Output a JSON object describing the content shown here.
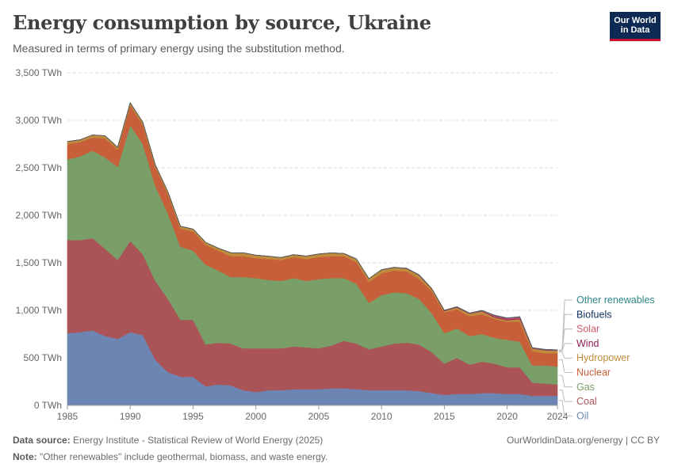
{
  "header": {
    "title": "Energy consumption by source, Ukraine",
    "subtitle": "Measured in terms of primary energy using the substitution method.",
    "logo_line1": "Our World",
    "logo_line2": "in Data"
  },
  "footer": {
    "source_label": "Data source:",
    "source_text": "Energy Institute - Statistical Review of World Energy (2025)",
    "note_label": "Note:",
    "note_text": "\"Other renewables\" include geothermal, biomass, and waste energy.",
    "credit": "OurWorldinData.org/energy | CC BY"
  },
  "colors": {
    "logo_bg": "#0c2a53",
    "logo_accent": "#c8102e"
  },
  "chart_data": {
    "type": "area",
    "stacked": true,
    "title": "Energy consumption by source, Ukraine",
    "xlabel": "",
    "ylabel": "",
    "ylim": [
      0,
      3500
    ],
    "xlim": [
      1985,
      2024
    ],
    "y_ticks": [
      0,
      500,
      1000,
      1500,
      2000,
      2500,
      3000,
      3500
    ],
    "y_tick_labels": [
      "0 TWh",
      "500 TWh",
      "1,000 TWh",
      "1,500 TWh",
      "2,000 TWh",
      "2,500 TWh",
      "3,000 TWh",
      "3,500 TWh"
    ],
    "x_ticks": [
      1985,
      1990,
      1995,
      2000,
      2005,
      2010,
      2015,
      2020,
      2024
    ],
    "x_tick_labels": [
      "1985",
      "1990",
      "1995",
      "2000",
      "2005",
      "2010",
      "2015",
      "2020",
      "2024"
    ],
    "grid": "horizontal-dashed",
    "legend_position": "right",
    "x": [
      1985,
      1986,
      1987,
      1988,
      1989,
      1990,
      1991,
      1992,
      1993,
      1994,
      1995,
      1996,
      1997,
      1998,
      1999,
      2000,
      2001,
      2002,
      2003,
      2004,
      2005,
      2006,
      2007,
      2008,
      2009,
      2010,
      2011,
      2012,
      2013,
      2014,
      2015,
      2016,
      2017,
      2018,
      2019,
      2020,
      2021,
      2022,
      2023,
      2024
    ],
    "series": [
      {
        "name": "Oil",
        "color": "#6d85b3",
        "values": [
          760,
          770,
          790,
          730,
          700,
          770,
          740,
          480,
          350,
          300,
          300,
          200,
          220,
          210,
          160,
          140,
          160,
          160,
          170,
          170,
          170,
          180,
          180,
          170,
          160,
          160,
          160,
          160,
          150,
          130,
          110,
          120,
          120,
          130,
          130,
          120,
          120,
          100,
          100,
          100
        ]
      },
      {
        "name": "Coal",
        "color": "#ab5458",
        "values": [
          980,
          970,
          970,
          920,
          830,
          960,
          850,
          830,
          770,
          600,
          600,
          440,
          440,
          440,
          440,
          460,
          440,
          440,
          450,
          440,
          430,
          450,
          500,
          480,
          430,
          460,
          490,
          500,
          490,
          430,
          330,
          380,
          310,
          330,
          310,
          280,
          280,
          140,
          130,
          120
        ]
      },
      {
        "name": "Gas",
        "color": "#7a9e67",
        "values": [
          850,
          880,
          920,
          960,
          980,
          1220,
          1160,
          1000,
          900,
          770,
          730,
          840,
          760,
          700,
          750,
          740,
          720,
          710,
          720,
          700,
          730,
          710,
          660,
          630,
          490,
          540,
          540,
          520,
          480,
          410,
          320,
          310,
          300,
          290,
          270,
          290,
          270,
          180,
          190,
          190
        ]
      },
      {
        "name": "Nuclear",
        "color": "#c7603a",
        "values": [
          160,
          150,
          140,
          200,
          180,
          210,
          200,
          200,
          200,
          190,
          200,
          210,
          210,
          220,
          220,
          210,
          220,
          220,
          220,
          230,
          230,
          230,
          230,
          230,
          220,
          230,
          230,
          230,
          210,
          230,
          220,
          200,
          210,
          210,
          200,
          190,
          210,
          150,
          130,
          140
        ]
      },
      {
        "name": "Hydropower",
        "color": "#bf8c3d",
        "values": [
          27,
          25,
          27,
          27,
          27,
          25,
          30,
          22,
          26,
          26,
          25,
          26,
          25,
          36,
          36,
          31,
          30,
          26,
          26,
          32,
          33,
          35,
          28,
          32,
          33,
          37,
          30,
          29,
          37,
          23,
          15,
          21,
          25,
          29,
          17,
          17,
          29,
          28,
          30,
          25
        ]
      },
      {
        "name": "Wind",
        "color": "#8f1e58",
        "values": [
          0,
          0,
          0,
          0,
          0,
          0,
          0,
          0,
          0,
          0,
          0,
          0,
          0,
          0,
          0,
          0,
          0,
          0,
          0,
          0,
          0,
          0,
          0,
          0,
          0,
          0,
          0,
          1,
          2,
          3,
          3,
          3,
          3,
          3,
          8,
          8,
          8,
          2,
          2,
          2
        ]
      },
      {
        "name": "Solar",
        "color": "#cf5a6f",
        "values": [
          0,
          0,
          0,
          0,
          0,
          0,
          0,
          0,
          0,
          0,
          0,
          0,
          0,
          0,
          0,
          0,
          0,
          0,
          0,
          0,
          0,
          0,
          0,
          0,
          0,
          0,
          2,
          2,
          3,
          2,
          2,
          3,
          3,
          5,
          10,
          12,
          13,
          4,
          4,
          4
        ]
      },
      {
        "name": "Biofuels",
        "color": "#0d2f5e",
        "values": [
          0,
          0,
          0,
          0,
          0,
          0,
          0,
          0,
          0,
          0,
          0,
          0,
          0,
          0,
          0,
          0,
          0,
          0,
          0,
          0,
          0,
          0,
          0,
          0,
          0,
          0,
          0,
          0,
          0,
          0,
          0,
          0,
          0,
          0,
          1,
          1,
          1,
          1,
          1,
          1
        ]
      },
      {
        "name": "Other renewables",
        "color": "#2d8587",
        "values": [
          0,
          0,
          0,
          0,
          0,
          0,
          0,
          0,
          0,
          0,
          0,
          0,
          0,
          0,
          0,
          0,
          0,
          0,
          0,
          0,
          0,
          0,
          0,
          0,
          0,
          1,
          1,
          1,
          1,
          1,
          1,
          1,
          1,
          2,
          2,
          2,
          2,
          2,
          2,
          2
        ]
      }
    ],
    "legend": [
      {
        "name": "Other renewables",
        "color": "#2d8587"
      },
      {
        "name": "Biofuels",
        "color": "#0d2f5e"
      },
      {
        "name": "Solar",
        "color": "#cf5a6f"
      },
      {
        "name": "Wind",
        "color": "#8f1e58"
      },
      {
        "name": "Hydropower",
        "color": "#bf8c3d"
      },
      {
        "name": "Nuclear",
        "color": "#c7603a"
      },
      {
        "name": "Gas",
        "color": "#7a9e67"
      },
      {
        "name": "Coal",
        "color": "#ab5458"
      },
      {
        "name": "Oil",
        "color": "#6d85b3"
      }
    ]
  }
}
